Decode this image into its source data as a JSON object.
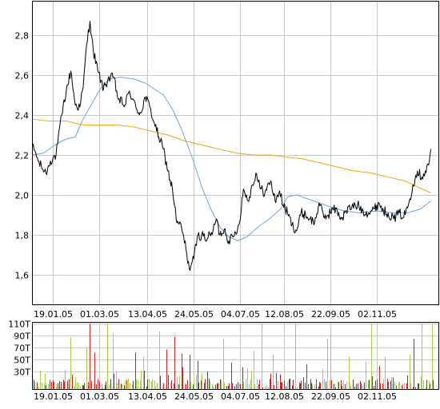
{
  "chart_data": [
    {
      "type": "line",
      "title": "",
      "xlabel": "",
      "ylabel": "",
      "ylim": [
        1.45,
        2.97
      ],
      "yticks": [
        "1,6",
        "1,8",
        "2,0",
        "2,2",
        "2,4",
        "2,6",
        "2,8"
      ],
      "ytick_values": [
        1.6,
        1.8,
        2.0,
        2.2,
        2.4,
        2.6,
        2.8
      ],
      "xticks": [
        "19.01.05",
        "01.03.05",
        "13.04.05",
        "24.05.05",
        "04.07.05",
        "12.08.05",
        "22.09.05",
        "02.11.05"
      ],
      "xtick_days": [
        18,
        59,
        102,
        143,
        184,
        223,
        264,
        305
      ],
      "xlim_days": [
        0,
        360
      ],
      "grid": true,
      "series": [
        {
          "name": "",
          "color": "#000000",
          "keypoints": [
            {
              "day": 0,
              "value": 2.24
            },
            {
              "day": 3,
              "value": 2.21
            },
            {
              "day": 5,
              "value": 2.17
            },
            {
              "day": 8,
              "value": 2.14
            },
            {
              "day": 12,
              "value": 2.11
            },
            {
              "day": 16,
              "value": 2.17
            },
            {
              "day": 21,
              "value": 2.2
            },
            {
              "day": 26,
              "value": 2.4
            },
            {
              "day": 30,
              "value": 2.52
            },
            {
              "day": 34,
              "value": 2.62
            },
            {
              "day": 38,
              "value": 2.45
            },
            {
              "day": 42,
              "value": 2.44
            },
            {
              "day": 45,
              "value": 2.54
            },
            {
              "day": 48,
              "value": 2.75
            },
            {
              "day": 51,
              "value": 2.87
            },
            {
              "day": 54,
              "value": 2.72
            },
            {
              "day": 58,
              "value": 2.62
            },
            {
              "day": 63,
              "value": 2.53
            },
            {
              "day": 67,
              "value": 2.58
            },
            {
              "day": 72,
              "value": 2.59
            },
            {
              "day": 76,
              "value": 2.48
            },
            {
              "day": 82,
              "value": 2.45
            },
            {
              "day": 86,
              "value": 2.52
            },
            {
              "day": 92,
              "value": 2.43
            },
            {
              "day": 96,
              "value": 2.41
            },
            {
              "day": 100,
              "value": 2.49
            },
            {
              "day": 104,
              "value": 2.44
            },
            {
              "day": 108,
              "value": 2.36
            },
            {
              "day": 112,
              "value": 2.29
            },
            {
              "day": 116,
              "value": 2.23
            },
            {
              "day": 120,
              "value": 2.12
            },
            {
              "day": 124,
              "value": 2.03
            },
            {
              "day": 128,
              "value": 1.86
            },
            {
              "day": 132,
              "value": 1.84
            },
            {
              "day": 136,
              "value": 1.73
            },
            {
              "day": 139,
              "value": 1.63
            },
            {
              "day": 143,
              "value": 1.68
            },
            {
              "day": 146,
              "value": 1.79
            },
            {
              "day": 150,
              "value": 1.8
            },
            {
              "day": 155,
              "value": 1.78
            },
            {
              "day": 160,
              "value": 1.82
            },
            {
              "day": 163,
              "value": 1.88
            },
            {
              "day": 166,
              "value": 1.8
            },
            {
              "day": 170,
              "value": 1.83
            },
            {
              "day": 174,
              "value": 1.77
            },
            {
              "day": 178,
              "value": 1.79
            },
            {
              "day": 183,
              "value": 1.85
            },
            {
              "day": 187,
              "value": 2.03
            },
            {
              "day": 191,
              "value": 1.97
            },
            {
              "day": 195,
              "value": 2.05
            },
            {
              "day": 198,
              "value": 2.11
            },
            {
              "day": 202,
              "value": 2.03
            },
            {
              "day": 206,
              "value": 2.01
            },
            {
              "day": 211,
              "value": 2.07
            },
            {
              "day": 215,
              "value": 1.97
            },
            {
              "day": 219,
              "value": 2.02
            },
            {
              "day": 222,
              "value": 1.95
            },
            {
              "day": 226,
              "value": 1.91
            },
            {
              "day": 230,
              "value": 1.85
            },
            {
              "day": 234,
              "value": 1.82
            },
            {
              "day": 238,
              "value": 1.91
            },
            {
              "day": 242,
              "value": 1.9
            },
            {
              "day": 246,
              "value": 1.88
            },
            {
              "day": 250,
              "value": 1.86
            },
            {
              "day": 254,
              "value": 1.96
            },
            {
              "day": 258,
              "value": 1.89
            },
            {
              "day": 262,
              "value": 1.9
            },
            {
              "day": 266,
              "value": 1.93
            },
            {
              "day": 270,
              "value": 1.92
            },
            {
              "day": 274,
              "value": 1.88
            },
            {
              "day": 278,
              "value": 1.92
            },
            {
              "day": 283,
              "value": 1.94
            },
            {
              "day": 288,
              "value": 1.95
            },
            {
              "day": 293,
              "value": 1.92
            },
            {
              "day": 298,
              "value": 1.91
            },
            {
              "day": 303,
              "value": 1.93
            },
            {
              "day": 307,
              "value": 1.96
            },
            {
              "day": 311,
              "value": 1.92
            },
            {
              "day": 315,
              "value": 1.91
            },
            {
              "day": 320,
              "value": 1.88
            },
            {
              "day": 325,
              "value": 1.91
            },
            {
              "day": 329,
              "value": 1.89
            },
            {
              "day": 333,
              "value": 1.95
            },
            {
              "day": 337,
              "value": 2.05
            },
            {
              "day": 341,
              "value": 2.12
            },
            {
              "day": 345,
              "value": 2.09
            },
            {
              "day": 348,
              "value": 2.12
            },
            {
              "day": 351,
              "value": 2.15
            },
            {
              "day": 353,
              "value": 2.23
            }
          ],
          "noise": 0.025
        },
        {
          "name": "",
          "color": "#6ba6dc",
          "keypoints": [
            {
              "day": 0,
              "value": 2.2
            },
            {
              "day": 10,
              "value": 2.21
            },
            {
              "day": 20,
              "value": 2.25
            },
            {
              "day": 30,
              "value": 2.28
            },
            {
              "day": 38,
              "value": 2.29
            },
            {
              "day": 44,
              "value": 2.37
            },
            {
              "day": 52,
              "value": 2.45
            },
            {
              "day": 60,
              "value": 2.53
            },
            {
              "day": 68,
              "value": 2.58
            },
            {
              "day": 78,
              "value": 2.59
            },
            {
              "day": 90,
              "value": 2.58
            },
            {
              "day": 100,
              "value": 2.56
            },
            {
              "day": 108,
              "value": 2.53
            },
            {
              "day": 116,
              "value": 2.5
            },
            {
              "day": 124,
              "value": 2.43
            },
            {
              "day": 132,
              "value": 2.33
            },
            {
              "day": 142,
              "value": 2.18
            },
            {
              "day": 150,
              "value": 2.04
            },
            {
              "day": 158,
              "value": 1.93
            },
            {
              "day": 166,
              "value": 1.84
            },
            {
              "day": 174,
              "value": 1.79
            },
            {
              "day": 182,
              "value": 1.77
            },
            {
              "day": 190,
              "value": 1.79
            },
            {
              "day": 200,
              "value": 1.84
            },
            {
              "day": 210,
              "value": 1.88
            },
            {
              "day": 220,
              "value": 1.93
            },
            {
              "day": 226,
              "value": 1.99
            },
            {
              "day": 234,
              "value": 2.0
            },
            {
              "day": 244,
              "value": 1.98
            },
            {
              "day": 254,
              "value": 1.96
            },
            {
              "day": 264,
              "value": 1.94
            },
            {
              "day": 276,
              "value": 1.92
            },
            {
              "day": 290,
              "value": 1.91
            },
            {
              "day": 305,
              "value": 1.92
            },
            {
              "day": 320,
              "value": 1.91
            },
            {
              "day": 332,
              "value": 1.91
            },
            {
              "day": 344,
              "value": 1.93
            },
            {
              "day": 353,
              "value": 1.97
            }
          ],
          "noise": 0
        },
        {
          "name": "",
          "color": "#f2a712",
          "keypoints": [
            {
              "day": 0,
              "value": 2.38
            },
            {
              "day": 15,
              "value": 2.37
            },
            {
              "day": 30,
              "value": 2.37
            },
            {
              "day": 45,
              "value": 2.35
            },
            {
              "day": 60,
              "value": 2.35
            },
            {
              "day": 75,
              "value": 2.35
            },
            {
              "day": 90,
              "value": 2.34
            },
            {
              "day": 105,
              "value": 2.32
            },
            {
              "day": 120,
              "value": 2.3
            },
            {
              "day": 135,
              "value": 2.27
            },
            {
              "day": 150,
              "value": 2.25
            },
            {
              "day": 165,
              "value": 2.23
            },
            {
              "day": 180,
              "value": 2.21
            },
            {
              "day": 195,
              "value": 2.2
            },
            {
              "day": 210,
              "value": 2.2
            },
            {
              "day": 225,
              "value": 2.19
            },
            {
              "day": 240,
              "value": 2.18
            },
            {
              "day": 255,
              "value": 2.16
            },
            {
              "day": 270,
              "value": 2.14
            },
            {
              "day": 285,
              "value": 2.12
            },
            {
              "day": 300,
              "value": 2.11
            },
            {
              "day": 315,
              "value": 2.09
            },
            {
              "day": 330,
              "value": 2.07
            },
            {
              "day": 345,
              "value": 2.03
            },
            {
              "day": 353,
              "value": 2.01
            }
          ],
          "noise": 0
        }
      ]
    },
    {
      "type": "bar",
      "title": "",
      "xlabel": "",
      "ylabel": "",
      "ylim": [
        0,
        112
      ],
      "yticks": [
        "30T",
        "50T",
        "70T",
        "90T",
        "110T"
      ],
      "ytick_values": [
        30,
        50,
        70,
        90,
        110
      ],
      "xticks": [
        "19.01.05",
        "01.03.05",
        "13.04.05",
        "24.05.05",
        "04.07.05",
        "12.08.05",
        "22.09.05",
        "02.11.05"
      ],
      "xtick_days": [
        18,
        59,
        102,
        143,
        184,
        223,
        264,
        305
      ],
      "xlim_days": [
        0,
        360
      ],
      "grid": true,
      "colors": {
        "up": "#a6cf52",
        "down": "#d91f1f",
        "neutral": "#4d4d4d"
      },
      "bar_count": 250,
      "baseline_volume": 9,
      "spikes": [
        {
          "day": 29,
          "value": 33,
          "dir": "up"
        },
        {
          "day": 34,
          "value": 87,
          "dir": "up"
        },
        {
          "day": 36,
          "value": 40,
          "dir": "down"
        },
        {
          "day": 48,
          "value": 70,
          "dir": "up"
        },
        {
          "day": 51,
          "value": 110,
          "dir": "down"
        },
        {
          "day": 55,
          "value": 62,
          "dir": "down"
        },
        {
          "day": 66,
          "value": 110,
          "dir": "up"
        },
        {
          "day": 71,
          "value": 95,
          "dir": "up"
        },
        {
          "day": 77,
          "value": 55,
          "dir": "down"
        },
        {
          "day": 91,
          "value": 62,
          "dir": "down"
        },
        {
          "day": 98,
          "value": 55,
          "dir": "up"
        },
        {
          "day": 107,
          "value": 68,
          "dir": "up"
        },
        {
          "day": 112,
          "value": 97,
          "dir": "up"
        },
        {
          "day": 119,
          "value": 67,
          "dir": "down"
        },
        {
          "day": 126,
          "value": 88,
          "dir": "down"
        },
        {
          "day": 132,
          "value": 60,
          "dir": "down"
        },
        {
          "day": 139,
          "value": 58,
          "dir": "down"
        },
        {
          "day": 146,
          "value": 48,
          "dir": "down"
        },
        {
          "day": 161,
          "value": 60,
          "dir": "up"
        },
        {
          "day": 169,
          "value": 85,
          "dir": "up"
        },
        {
          "day": 178,
          "value": 55,
          "dir": "up"
        },
        {
          "day": 188,
          "value": 110,
          "dir": "up"
        },
        {
          "day": 196,
          "value": 65,
          "dir": "up"
        },
        {
          "day": 203,
          "value": 110,
          "dir": "up"
        },
        {
          "day": 213,
          "value": 58,
          "dir": "up"
        },
        {
          "day": 216,
          "value": 28,
          "dir": "down"
        },
        {
          "day": 225,
          "value": 50,
          "dir": "down"
        },
        {
          "day": 233,
          "value": 110,
          "dir": "up"
        },
        {
          "day": 243,
          "value": 42,
          "dir": "down"
        },
        {
          "day": 256,
          "value": 110,
          "dir": "up"
        },
        {
          "day": 261,
          "value": 85,
          "dir": "up"
        },
        {
          "day": 264,
          "value": 100,
          "dir": "up"
        },
        {
          "day": 280,
          "value": 55,
          "dir": "up"
        },
        {
          "day": 300,
          "value": 110,
          "dir": "up"
        },
        {
          "day": 306,
          "value": 85,
          "dir": "up"
        },
        {
          "day": 312,
          "value": 55,
          "dir": "up"
        },
        {
          "day": 330,
          "value": 48,
          "dir": "down"
        },
        {
          "day": 334,
          "value": 58,
          "dir": "up"
        },
        {
          "day": 338,
          "value": 85,
          "dir": "down"
        },
        {
          "day": 345,
          "value": 110,
          "dir": "up"
        },
        {
          "day": 350,
          "value": 48,
          "dir": "down"
        },
        {
          "day": 354,
          "value": 110,
          "dir": "up"
        }
      ]
    }
  ]
}
